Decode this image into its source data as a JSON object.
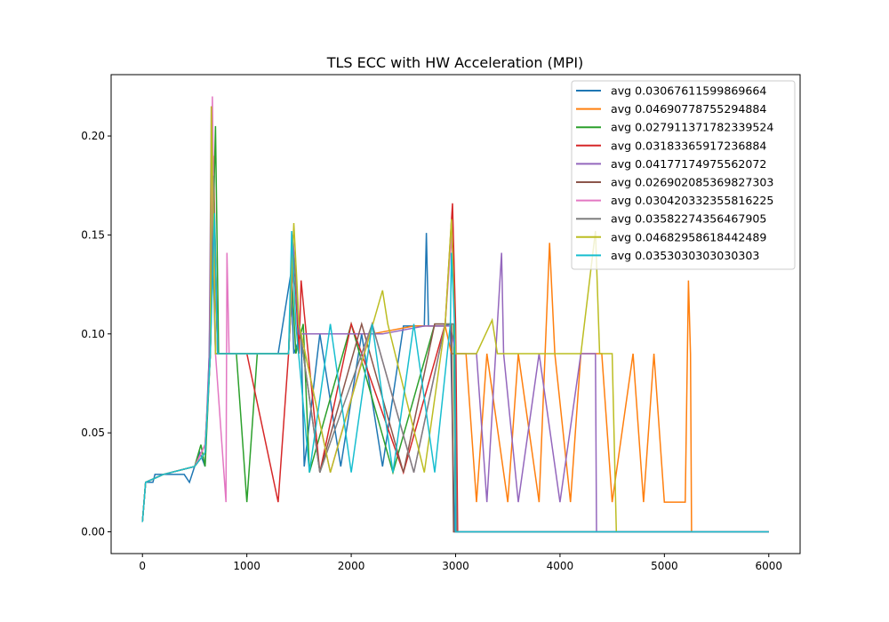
{
  "chart_data": {
    "type": "line",
    "title": "TLS ECC with HW Acceleration (MPI)",
    "xlabel": "",
    "ylabel": "",
    "xlim": [
      -300,
      6300
    ],
    "ylim": [
      -0.011,
      0.231
    ],
    "xticks": [
      0,
      1000,
      2000,
      3000,
      4000,
      5000,
      6000
    ],
    "xtick_labels": [
      "0",
      "1000",
      "2000",
      "3000",
      "4000",
      "5000",
      "6000"
    ],
    "yticks": [
      0.0,
      0.05,
      0.1,
      0.15,
      0.2
    ],
    "ytick_labels": [
      "0.00",
      "0.05",
      "0.10",
      "0.15",
      "0.20"
    ],
    "grid": false,
    "legend_position": "top-right",
    "series": [
      {
        "name": "avg 0.03067611599869664",
        "color": "#1f77b4",
        "points": [
          [
            0,
            0.005
          ],
          [
            30,
            0.025
          ],
          [
            100,
            0.025
          ],
          [
            120,
            0.029
          ],
          [
            200,
            0.029
          ],
          [
            400,
            0.029
          ],
          [
            450,
            0.025
          ],
          [
            500,
            0.033
          ],
          [
            550,
            0.04
          ],
          [
            600,
            0.033
          ],
          [
            640,
            0.09
          ],
          [
            660,
            0.17
          ],
          [
            700,
            0.09
          ],
          [
            900,
            0.09
          ],
          [
            1000,
            0.09
          ],
          [
            1100,
            0.09
          ],
          [
            1300,
            0.09
          ],
          [
            1420,
            0.13
          ],
          [
            1450,
            0.09
          ],
          [
            1520,
            0.1
          ],
          [
            1550,
            0.033
          ],
          [
            1700,
            0.1
          ],
          [
            1900,
            0.033
          ],
          [
            2100,
            0.1
          ],
          [
            2300,
            0.033
          ],
          [
            2500,
            0.104
          ],
          [
            2700,
            0.104
          ],
          [
            2720,
            0.151
          ],
          [
            2740,
            0.104
          ],
          [
            2900,
            0.104
          ],
          [
            2950,
            0.105
          ],
          [
            2990,
            0.0
          ],
          [
            6000,
            0.0
          ]
        ]
      },
      {
        "name": "avg 0.04690778755294884",
        "color": "#ff7f0e",
        "points": [
          [
            0,
            0.005
          ],
          [
            30,
            0.025
          ],
          [
            200,
            0.029
          ],
          [
            500,
            0.033
          ],
          [
            600,
            0.04
          ],
          [
            650,
            0.09
          ],
          [
            680,
            0.19
          ],
          [
            720,
            0.09
          ],
          [
            1000,
            0.09
          ],
          [
            1400,
            0.09
          ],
          [
            1440,
            0.15
          ],
          [
            1500,
            0.1
          ],
          [
            1800,
            0.1
          ],
          [
            2200,
            0.1
          ],
          [
            2600,
            0.104
          ],
          [
            2900,
            0.104
          ],
          [
            2960,
            0.09
          ],
          [
            3100,
            0.09
          ],
          [
            3200,
            0.015
          ],
          [
            3300,
            0.09
          ],
          [
            3500,
            0.015
          ],
          [
            3600,
            0.09
          ],
          [
            3800,
            0.015
          ],
          [
            3900,
            0.146
          ],
          [
            3950,
            0.09
          ],
          [
            4100,
            0.015
          ],
          [
            4200,
            0.09
          ],
          [
            4400,
            0.09
          ],
          [
            4500,
            0.015
          ],
          [
            4700,
            0.09
          ],
          [
            4800,
            0.015
          ],
          [
            4900,
            0.09
          ],
          [
            5000,
            0.015
          ],
          [
            5200,
            0.015
          ],
          [
            5230,
            0.127
          ],
          [
            5250,
            0.09
          ],
          [
            5260,
            0.0
          ]
        ]
      },
      {
        "name": "avg 0.027911371782339524",
        "color": "#2ca02c",
        "points": [
          [
            0,
            0.005
          ],
          [
            30,
            0.025
          ],
          [
            200,
            0.029
          ],
          [
            500,
            0.033
          ],
          [
            560,
            0.044
          ],
          [
            600,
            0.033
          ],
          [
            650,
            0.09
          ],
          [
            700,
            0.205
          ],
          [
            730,
            0.09
          ],
          [
            900,
            0.09
          ],
          [
            1000,
            0.015
          ],
          [
            1100,
            0.09
          ],
          [
            1400,
            0.09
          ],
          [
            1430,
            0.13
          ],
          [
            1470,
            0.09
          ],
          [
            1540,
            0.105
          ],
          [
            1600,
            0.03
          ],
          [
            2000,
            0.105
          ],
          [
            2400,
            0.03
          ],
          [
            2800,
            0.105
          ],
          [
            2980,
            0.105
          ],
          [
            3000,
            0.0
          ],
          [
            6000,
            0.0
          ]
        ]
      },
      {
        "name": "avg 0.03183365917236884",
        "color": "#d62728",
        "points": [
          [
            0,
            0.005
          ],
          [
            30,
            0.025
          ],
          [
            200,
            0.029
          ],
          [
            500,
            0.033
          ],
          [
            600,
            0.044
          ],
          [
            650,
            0.09
          ],
          [
            680,
            0.17
          ],
          [
            720,
            0.09
          ],
          [
            1000,
            0.09
          ],
          [
            1300,
            0.015
          ],
          [
            1400,
            0.09
          ],
          [
            1450,
            0.14
          ],
          [
            1500,
            0.09
          ],
          [
            1520,
            0.127
          ],
          [
            1560,
            0.105
          ],
          [
            1700,
            0.03
          ],
          [
            2000,
            0.105
          ],
          [
            2500,
            0.03
          ],
          [
            2900,
            0.105
          ],
          [
            2970,
            0.166
          ],
          [
            3000,
            0.105
          ],
          [
            3020,
            0.0
          ],
          [
            6000,
            0.0
          ]
        ]
      },
      {
        "name": "avg 0.04177174975562072",
        "color": "#9467bd",
        "points": [
          [
            0,
            0.005
          ],
          [
            30,
            0.025
          ],
          [
            200,
            0.029
          ],
          [
            500,
            0.033
          ],
          [
            600,
            0.04
          ],
          [
            640,
            0.09
          ],
          [
            660,
            0.215
          ],
          [
            700,
            0.09
          ],
          [
            1000,
            0.09
          ],
          [
            1400,
            0.09
          ],
          [
            1440,
            0.15
          ],
          [
            1500,
            0.1
          ],
          [
            1900,
            0.1
          ],
          [
            2300,
            0.1
          ],
          [
            2700,
            0.104
          ],
          [
            2950,
            0.104
          ],
          [
            3000,
            0.09
          ],
          [
            3200,
            0.09
          ],
          [
            3300,
            0.015
          ],
          [
            3440,
            0.141
          ],
          [
            3460,
            0.09
          ],
          [
            3600,
            0.015
          ],
          [
            3800,
            0.09
          ],
          [
            4000,
            0.015
          ],
          [
            4200,
            0.09
          ],
          [
            4340,
            0.09
          ],
          [
            4350,
            0.0
          ],
          [
            6000,
            0.0
          ]
        ]
      },
      {
        "name": "avg 0.026902085369827303",
        "color": "#8c564b",
        "points": [
          [
            0,
            0.005
          ],
          [
            30,
            0.025
          ],
          [
            200,
            0.029
          ],
          [
            500,
            0.033
          ],
          [
            600,
            0.04
          ],
          [
            650,
            0.09
          ],
          [
            680,
            0.18
          ],
          [
            720,
            0.09
          ],
          [
            1000,
            0.09
          ],
          [
            1400,
            0.09
          ],
          [
            1450,
            0.14
          ],
          [
            1500,
            0.105
          ],
          [
            1700,
            0.03
          ],
          [
            2100,
            0.105
          ],
          [
            2500,
            0.03
          ],
          [
            2800,
            0.105
          ],
          [
            2960,
            0.105
          ],
          [
            2980,
            0.0
          ],
          [
            6000,
            0.0
          ]
        ]
      },
      {
        "name": "avg 0.030420332355816225",
        "color": "#e377c2",
        "points": [
          [
            0,
            0.005
          ],
          [
            30,
            0.025
          ],
          [
            200,
            0.029
          ],
          [
            500,
            0.033
          ],
          [
            600,
            0.044
          ],
          [
            650,
            0.09
          ],
          [
            670,
            0.22
          ],
          [
            700,
            0.09
          ],
          [
            800,
            0.015
          ],
          [
            810,
            0.141
          ],
          [
            830,
            0.09
          ],
          [
            1000,
            0.09
          ],
          [
            1400,
            0.09
          ],
          [
            1450,
            0.14
          ],
          [
            1500,
            0.105
          ],
          [
            1800,
            0.03
          ],
          [
            2200,
            0.105
          ],
          [
            2600,
            0.03
          ],
          [
            2900,
            0.105
          ],
          [
            2960,
            0.15
          ],
          [
            2990,
            0.105
          ],
          [
            3000,
            0.0
          ],
          [
            6000,
            0.0
          ]
        ]
      },
      {
        "name": "avg 0.03582274356467905",
        "color": "#7f7f7f",
        "points": [
          [
            0,
            0.005
          ],
          [
            30,
            0.025
          ],
          [
            200,
            0.029
          ],
          [
            500,
            0.033
          ],
          [
            600,
            0.04
          ],
          [
            650,
            0.09
          ],
          [
            680,
            0.18
          ],
          [
            720,
            0.09
          ],
          [
            1000,
            0.09
          ],
          [
            1400,
            0.09
          ],
          [
            1450,
            0.14
          ],
          [
            1500,
            0.105
          ],
          [
            1700,
            0.03
          ],
          [
            2200,
            0.105
          ],
          [
            2600,
            0.03
          ],
          [
            2900,
            0.105
          ],
          [
            2990,
            0.105
          ],
          [
            3010,
            0.0
          ],
          [
            6000,
            0.0
          ]
        ]
      },
      {
        "name": "avg 0.04682958618442489",
        "color": "#bcbd22",
        "points": [
          [
            0,
            0.005
          ],
          [
            30,
            0.025
          ],
          [
            200,
            0.029
          ],
          [
            500,
            0.033
          ],
          [
            600,
            0.04
          ],
          [
            650,
            0.09
          ],
          [
            660,
            0.215
          ],
          [
            700,
            0.09
          ],
          [
            1000,
            0.09
          ],
          [
            1400,
            0.09
          ],
          [
            1450,
            0.156
          ],
          [
            1500,
            0.105
          ],
          [
            1800,
            0.03
          ],
          [
            2300,
            0.122
          ],
          [
            2350,
            0.105
          ],
          [
            2700,
            0.03
          ],
          [
            2900,
            0.105
          ],
          [
            2960,
            0.158
          ],
          [
            3000,
            0.09
          ],
          [
            3200,
            0.09
          ],
          [
            3350,
            0.107
          ],
          [
            3400,
            0.09
          ],
          [
            3500,
            0.09
          ],
          [
            3900,
            0.09
          ],
          [
            4200,
            0.09
          ],
          [
            4340,
            0.152
          ],
          [
            4380,
            0.09
          ],
          [
            4500,
            0.09
          ],
          [
            4540,
            0.0
          ]
        ]
      },
      {
        "name": "avg 0.0353030303030303",
        "color": "#17becf",
        "points": [
          [
            0,
            0.005
          ],
          [
            30,
            0.025
          ],
          [
            200,
            0.029
          ],
          [
            500,
            0.033
          ],
          [
            600,
            0.04
          ],
          [
            650,
            0.09
          ],
          [
            690,
            0.161
          ],
          [
            720,
            0.09
          ],
          [
            1000,
            0.09
          ],
          [
            1400,
            0.09
          ],
          [
            1430,
            0.152
          ],
          [
            1470,
            0.105
          ],
          [
            1600,
            0.03
          ],
          [
            1800,
            0.105
          ],
          [
            2000,
            0.03
          ],
          [
            2200,
            0.105
          ],
          [
            2400,
            0.03
          ],
          [
            2600,
            0.105
          ],
          [
            2800,
            0.03
          ],
          [
            2950,
            0.105
          ],
          [
            2960,
            0.141
          ],
          [
            2990,
            0.105
          ],
          [
            3000,
            0.0
          ],
          [
            6000,
            0.0
          ]
        ]
      }
    ]
  }
}
